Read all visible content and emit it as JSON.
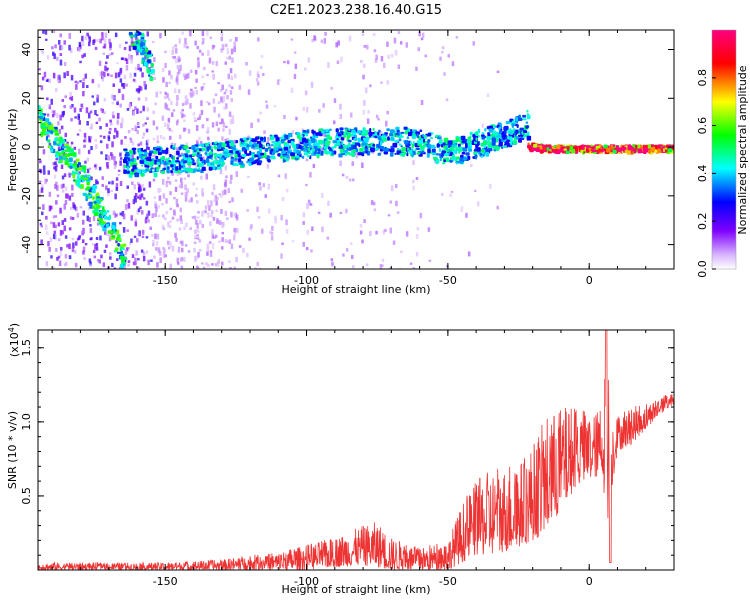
{
  "title": "C2E1.2023.238.16.40.G15",
  "chart_data": [
    {
      "type": "heatmap",
      "xlabel": "Height of straight line (km)",
      "ylabel": "Frequency (Hz)",
      "xlim": [
        -195,
        30
      ],
      "ylim": [
        -50,
        48
      ],
      "x_ticks": [
        -150,
        -100,
        -50,
        0
      ],
      "y_ticks": [
        -40,
        -20,
        0,
        20,
        40
      ],
      "colorbar": {
        "label": "Normalized spectral amplitude",
        "range": [
          0,
          1
        ],
        "ticks": [
          "0.0",
          "0.2",
          "0.4",
          "0.6",
          "0.8"
        ],
        "tick_values": [
          0,
          0.2,
          0.4,
          0.6,
          0.8
        ],
        "colormap": [
          "#ffffff",
          "#7f00ff",
          "#0000ff",
          "#00ffff",
          "#00ff00",
          "#ffff00",
          "#ff0000",
          "#ff0080"
        ]
      },
      "ridges": [
        {
          "x": [
            -195,
            -188,
            -180,
            -172,
            -165
          ],
          "y": [
            12,
            0,
            -12,
            -28,
            -45
          ],
          "amp": 0.55
        },
        {
          "x": [
            -163,
            -160,
            -157,
            -155
          ],
          "y": [
            50,
            44,
            38,
            32
          ],
          "amp": 0.5
        },
        {
          "x": [
            -165,
            -140,
            -120,
            -100,
            -80,
            -60,
            -50,
            -40,
            -30,
            -22
          ],
          "y": [
            -6,
            -4,
            -1,
            2,
            3,
            3,
            -2,
            2,
            6,
            10
          ],
          "amp": 0.45
        },
        {
          "x": [
            -22,
            -15,
            -10,
            -5,
            0,
            5,
            10,
            20,
            30
          ],
          "y": [
            1,
            0,
            0,
            0,
            0,
            0,
            0,
            0,
            0
          ],
          "amp": 0.92
        }
      ]
    },
    {
      "type": "line",
      "xlabel": "Height of straight line (km)",
      "ylabel": "SNR (10 * v/v)",
      "y_multiplier_label": "(x10",
      "y_multiplier_exp": "4",
      "y_multiplier_close": ")",
      "xlim": [
        -195,
        30
      ],
      "ylim": [
        0.0,
        1.62
      ],
      "x_ticks": [
        -150,
        -100,
        -50,
        0
      ],
      "y_ticks": [
        0.5,
        1.0,
        1.5
      ],
      "y_tick_labels": [
        "0.5",
        "1.0",
        "1.5"
      ],
      "line_color": "#ee3333",
      "envelope": {
        "x": [
          -195,
          -170,
          -150,
          -130,
          -120,
          -110,
          -100,
          -90,
          -80,
          -75,
          -70,
          -60,
          -50,
          -45,
          -40,
          -35,
          -30,
          -25,
          -20,
          -15,
          -10,
          -5,
          0,
          5,
          6,
          8,
          10,
          15,
          20,
          25,
          30
        ],
        "lo": [
          0.0,
          0.0,
          0.0,
          0.0,
          0.0,
          0.0,
          0.0,
          0.02,
          0.03,
          0.02,
          0.0,
          0.0,
          0.0,
          0.05,
          0.1,
          0.1,
          0.12,
          0.15,
          0.2,
          0.25,
          0.4,
          0.55,
          0.6,
          0.65,
          0.05,
          0.55,
          0.8,
          0.85,
          0.95,
          1.05,
          1.12
        ],
        "hi": [
          0.05,
          0.05,
          0.05,
          0.07,
          0.1,
          0.12,
          0.17,
          0.22,
          0.3,
          0.33,
          0.22,
          0.15,
          0.2,
          0.45,
          0.6,
          0.68,
          0.7,
          0.72,
          0.85,
          1.05,
          1.1,
          1.12,
          1.05,
          1.1,
          1.62,
          1.1,
          1.05,
          1.1,
          1.12,
          1.17,
          1.2
        ]
      }
    }
  ]
}
